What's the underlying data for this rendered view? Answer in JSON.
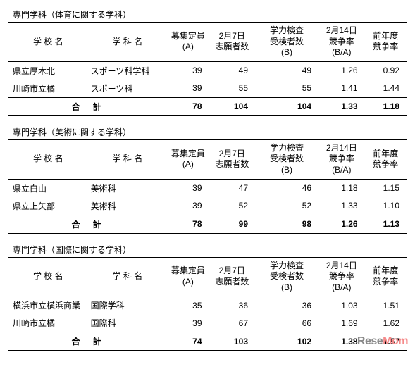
{
  "headers": {
    "school": "学 校 名",
    "dept": "学 科 名",
    "capacity": "募集定員\n(A)",
    "applicants": "2月7日\n志願者数",
    "examinees": "学力検査\n受検者数\n(B)",
    "ratio": "2月14日\n競争率\n(B/A)",
    "prev": "前年度\n競争率",
    "total": "合計"
  },
  "sections": [
    {
      "title": "専門学科（体育に関する学科）",
      "rows": [
        {
          "school": "県立厚木北",
          "dept": "スポーツ科学科",
          "a": "39",
          "app": "49",
          "b": "49",
          "ratio": "1.26",
          "prev": "0.92"
        },
        {
          "school": "川崎市立橘",
          "dept": "スポーツ科",
          "a": "39",
          "app": "55",
          "b": "55",
          "ratio": "1.41",
          "prev": "1.44"
        }
      ],
      "total": {
        "a": "78",
        "app": "104",
        "b": "104",
        "ratio": "1.33",
        "prev": "1.18"
      }
    },
    {
      "title": "専門学科（美術に関する学科）",
      "rows": [
        {
          "school": "県立白山",
          "dept": "美術科",
          "a": "39",
          "app": "47",
          "b": "46",
          "ratio": "1.18",
          "prev": "1.15"
        },
        {
          "school": "県立上矢部",
          "dept": "美術科",
          "a": "39",
          "app": "52",
          "b": "52",
          "ratio": "1.33",
          "prev": "1.10"
        }
      ],
      "total": {
        "a": "78",
        "app": "99",
        "b": "98",
        "ratio": "1.26",
        "prev": "1.13"
      }
    },
    {
      "title": "専門学科（国際に関する学科）",
      "rows": [
        {
          "school": "横浜市立横浜商業",
          "dept": "国際学科",
          "a": "35",
          "app": "36",
          "b": "36",
          "ratio": "1.03",
          "prev": "1.51"
        },
        {
          "school": "川崎市立橘",
          "dept": "国際科",
          "a": "39",
          "app": "67",
          "b": "66",
          "ratio": "1.69",
          "prev": "1.62"
        }
      ],
      "total": {
        "a": "74",
        "app": "103",
        "b": "102",
        "ratio": "1.38",
        "prev": "1.57"
      }
    }
  ],
  "watermark": {
    "left": "Rese",
    "right": "Mom"
  }
}
